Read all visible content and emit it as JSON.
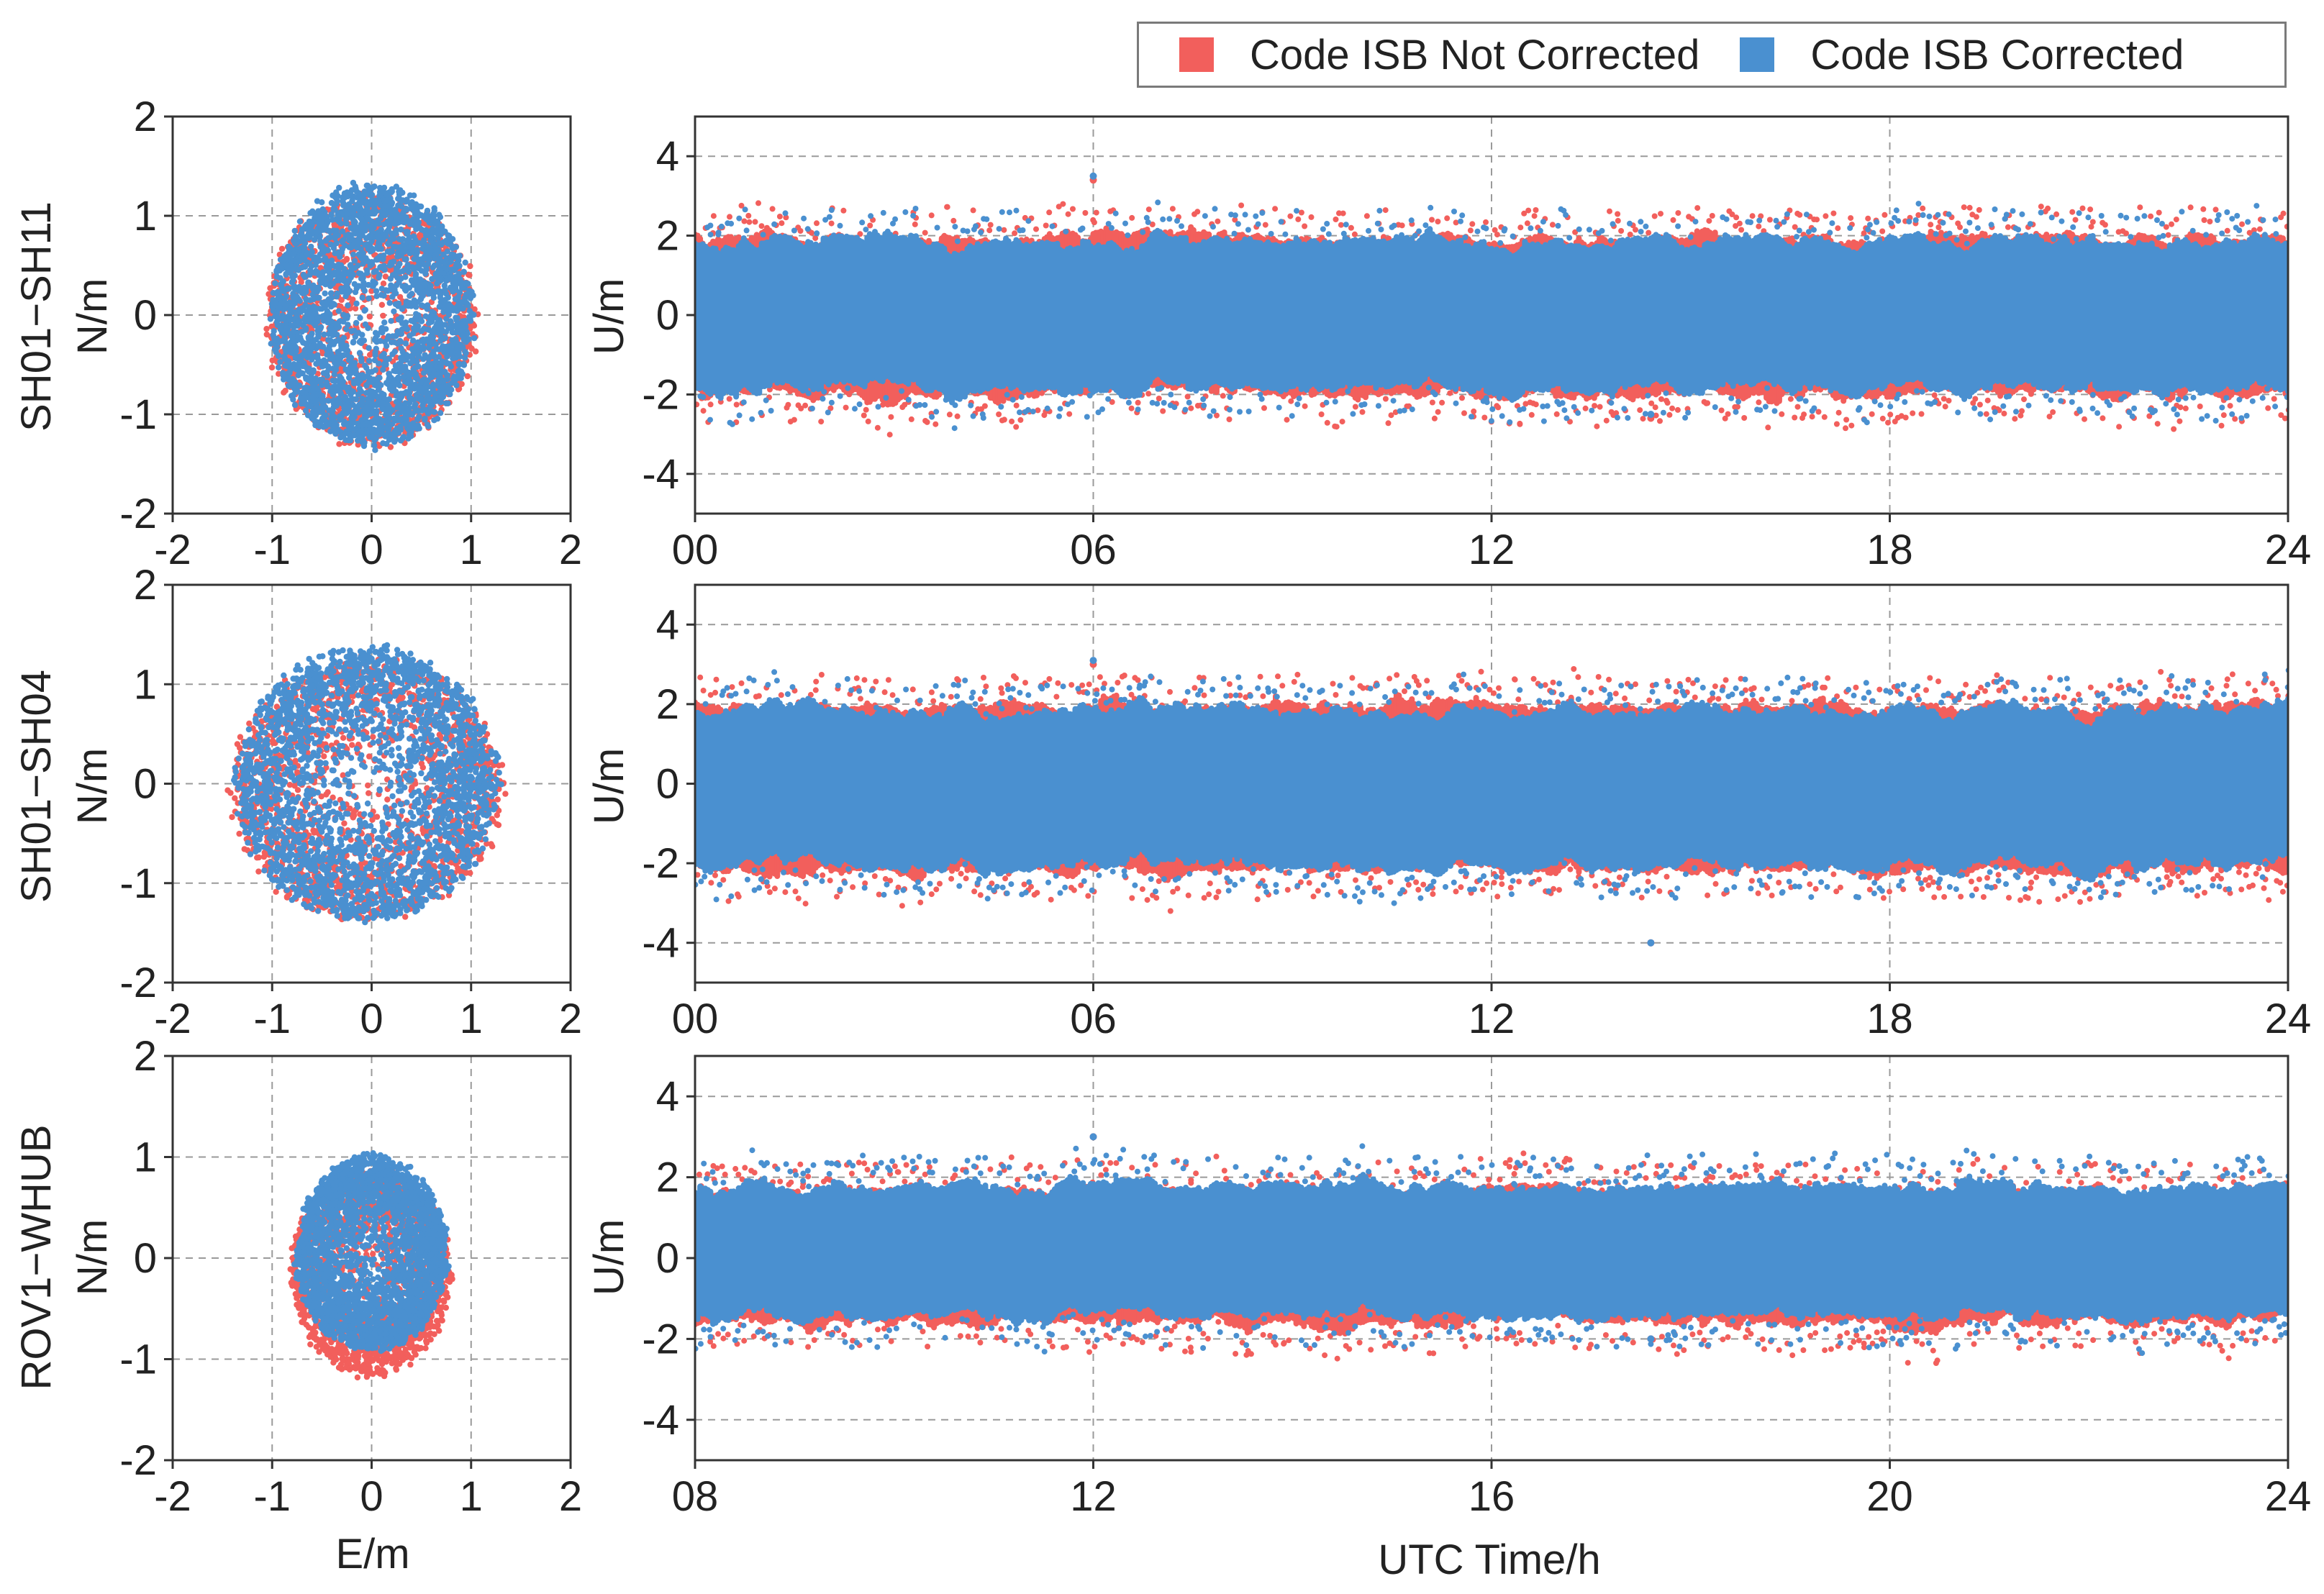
{
  "legend": {
    "items": [
      {
        "label": "Code ISB Not Corrected",
        "color": "#f25f5c"
      },
      {
        "label": "Code ISB Corrected",
        "color": "#4a90d0"
      }
    ]
  },
  "chart_data": [
    {
      "type": "scatter",
      "row": 0,
      "panel": "horizontal",
      "station_label": "SH01−SH11",
      "xlabel": "",
      "ylabel": "N/m",
      "xlim": [
        -2,
        2
      ],
      "ylim": [
        -2,
        2
      ],
      "xticks": [
        "-2",
        "-1",
        "0",
        "1",
        "2"
      ],
      "yticks": [
        "-2",
        "-1",
        "0",
        "1",
        "2"
      ],
      "grid": true,
      "series": [
        {
          "name": "Code ISB Not Corrected",
          "center": [
            0.0,
            -0.05
          ],
          "radius": [
            1.05,
            1.25
          ],
          "n_points": 1500
        },
        {
          "name": "Code ISB Corrected",
          "center": [
            0.0,
            0.0
          ],
          "radius": [
            1.0,
            1.3
          ],
          "n_points": 2600
        }
      ]
    },
    {
      "type": "scatter",
      "row": 0,
      "panel": "vertical",
      "xlabel": "",
      "ylabel": "U/m",
      "xlim": [
        0,
        24
      ],
      "ylim": [
        -5,
        5
      ],
      "xticks": [
        "00",
        "06",
        "12",
        "18",
        "24"
      ],
      "yticks": [
        "-4",
        "-2",
        "0",
        "2",
        "4"
      ],
      "grid": true,
      "series": [
        {
          "name": "Code ISB Not Corrected",
          "band_low": -1.9,
          "band_high": 1.9,
          "approx_range": [
            -2.6,
            3.4
          ]
        },
        {
          "name": "Code ISB Corrected",
          "band_low": -1.8,
          "band_high": 1.8,
          "approx_range": [
            -2.5,
            3.5
          ]
        }
      ]
    },
    {
      "type": "scatter",
      "row": 1,
      "panel": "horizontal",
      "station_label": "SH01−SH04",
      "xlabel": "",
      "ylabel": "N/m",
      "xlim": [
        -2,
        2
      ],
      "ylim": [
        -2,
        2
      ],
      "xticks": [
        "-2",
        "-1",
        "0",
        "1",
        "2"
      ],
      "yticks": [
        "-2",
        "-1",
        "0",
        "1",
        "2"
      ],
      "grid": true,
      "series": [
        {
          "name": "Code ISB Not Corrected",
          "center": [
            -0.05,
            -0.05
          ],
          "radius": [
            1.35,
            1.3
          ],
          "n_points": 1500
        },
        {
          "name": "Code ISB Corrected",
          "center": [
            -0.05,
            0.0
          ],
          "radius": [
            1.3,
            1.35
          ],
          "n_points": 2600
        }
      ]
    },
    {
      "type": "scatter",
      "row": 1,
      "panel": "vertical",
      "xlabel": "",
      "ylabel": "U/m",
      "xlim": [
        0,
        24
      ],
      "ylim": [
        -5,
        5
      ],
      "xticks": [
        "00",
        "06",
        "12",
        "18",
        "24"
      ],
      "yticks": [
        "-4",
        "-2",
        "0",
        "2",
        "4"
      ],
      "grid": true,
      "series": [
        {
          "name": "Code ISB Not Corrected",
          "band_low": -2.1,
          "band_high": 1.9,
          "approx_range": [
            -4.0,
            3.0
          ]
        },
        {
          "name": "Code ISB Corrected",
          "band_low": -2.0,
          "band_high": 1.8,
          "approx_range": [
            -4.0,
            3.1
          ]
        }
      ]
    },
    {
      "type": "scatter",
      "row": 2,
      "panel": "horizontal",
      "station_label": "ROV1−WHUB",
      "xlabel": "E/m",
      "ylabel": "N/m",
      "xlim": [
        -2,
        2
      ],
      "ylim": [
        -2,
        2
      ],
      "xticks": [
        "-2",
        "-1",
        "0",
        "1",
        "2"
      ],
      "yticks": [
        "-2",
        "-1",
        "0",
        "1",
        "2"
      ],
      "grid": true,
      "series": [
        {
          "name": "Code ISB Not Corrected",
          "center": [
            0.0,
            -0.15
          ],
          "radius": [
            0.8,
            1.0
          ],
          "n_points": 1500
        },
        {
          "name": "Code ISB Corrected",
          "center": [
            0.0,
            0.05
          ],
          "radius": [
            0.75,
            0.95
          ],
          "n_points": 2600
        }
      ]
    },
    {
      "type": "scatter",
      "row": 2,
      "panel": "vertical",
      "xlabel": "UTC Time/h",
      "ylabel": "U/m",
      "xlim": [
        8,
        24
      ],
      "ylim": [
        -5,
        5
      ],
      "xticks": [
        "08",
        "12",
        "16",
        "20",
        "24"
      ],
      "yticks": [
        "-4",
        "-2",
        "0",
        "2",
        "4"
      ],
      "grid": true,
      "series": [
        {
          "name": "Code ISB Not Corrected",
          "band_low": -1.5,
          "band_high": 1.6,
          "approx_range": [
            -2.0,
            3.0
          ]
        },
        {
          "name": "Code ISB Corrected",
          "band_low": -1.4,
          "band_high": 1.7,
          "approx_range": [
            -2.0,
            3.0
          ]
        }
      ]
    }
  ]
}
